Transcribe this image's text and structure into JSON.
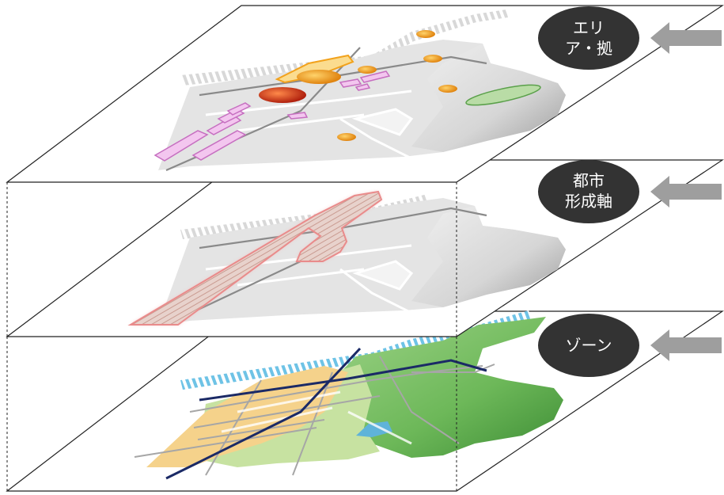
{
  "layers": [
    {
      "id": "area",
      "label_lines": [
        "エリ",
        "ア・拠"
      ]
    },
    {
      "id": "axis",
      "label_lines": [
        "都市",
        "形成軸"
      ]
    },
    {
      "id": "zone",
      "label_lines": [
        "ゾーン"
      ]
    }
  ],
  "colors": {
    "plane_stroke": "#222222",
    "label_bg": "#333333",
    "arrow": "#9e9e9e",
    "city_gray": "#e4e4e4",
    "district_purple": "#d17fc9",
    "node_orange": "#f2a21c",
    "node_red": "#c9301b",
    "axis_pink": "#e98b8b",
    "zone_green": "#7dc06b",
    "zone_yellow": "#f5d28b",
    "water_blue": "#5fb3d9",
    "rail_navy": "#1b2a66"
  }
}
